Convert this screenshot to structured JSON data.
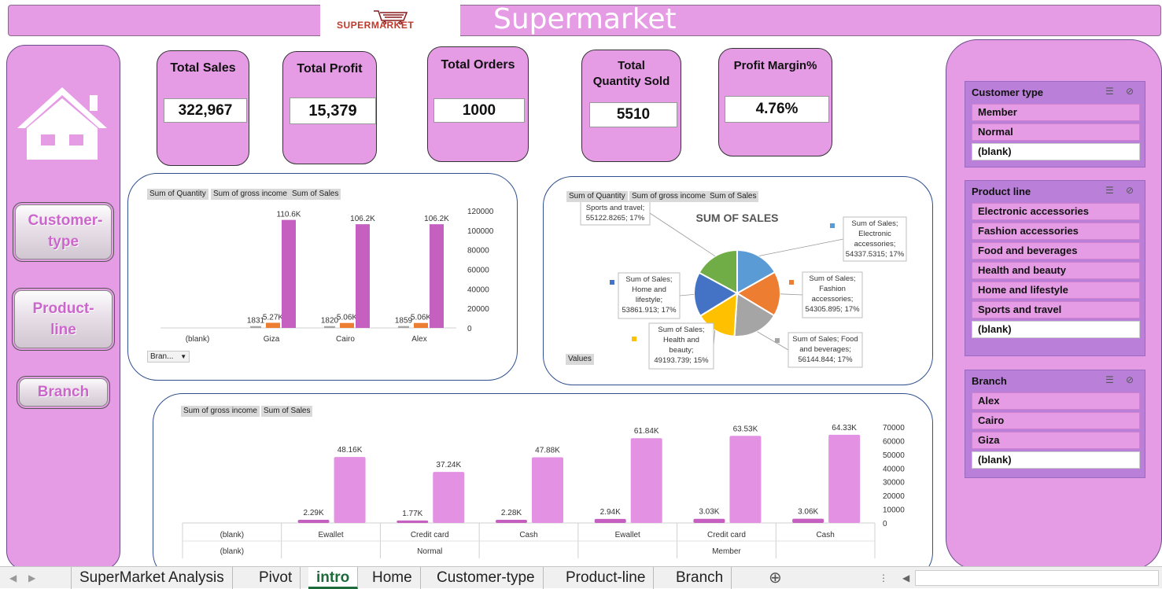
{
  "header": {
    "logo": "SUPERMARKET",
    "title": "Supermarket"
  },
  "nav": {
    "customer_type": "Customer-type",
    "product_line": "Product-line",
    "branch": "Branch"
  },
  "kpis": {
    "total_sales_label": "Total Sales",
    "total_sales": "322,967",
    "total_profit_label": "Total Profit",
    "total_profit": "15,379",
    "total_orders_label": "Total Orders",
    "total_orders": "1000",
    "total_qty_label_1": "Total",
    "total_qty_label_2": "Quantity Sold",
    "total_qty": "5510",
    "profit_margin_label": "Profit Margin%",
    "profit_margin": "4.76%"
  },
  "colors": {
    "sales": "#c55fc0",
    "profit": "#ed7d31",
    "quantity": "#a5a5a5",
    "panel": "#e59ce5",
    "bar2": "#e391e3"
  },
  "chart_data": [
    {
      "type": "bar",
      "title": "",
      "field_buttons": [
        "Sum of Quantity",
        "Sum of gross income",
        "Sum of Sales"
      ],
      "filter_button": "Bran...",
      "categories": [
        "(blank)",
        "Giza",
        "Cairo",
        "Alex"
      ],
      "series": [
        {
          "name": "Sum of Quantity",
          "values": [
            0,
            1831,
            1820,
            1859
          ],
          "labels": [
            "",
            "1831",
            "1820",
            "1859"
          ]
        },
        {
          "name": "Sum of gross income",
          "values": [
            0,
            5270,
            5060,
            5060
          ],
          "labels": [
            "",
            "5.27K",
            "5.06K",
            "5.06K"
          ]
        },
        {
          "name": "Sum of Sales",
          "values": [
            0,
            110600,
            106200,
            106200
          ],
          "labels": [
            "",
            "110.6K",
            "106.2K",
            "106.2K"
          ]
        }
      ],
      "ylim": [
        0,
        120000
      ],
      "yticks": [
        "120000",
        "100000",
        "80000",
        "60000",
        "40000",
        "20000",
        "0"
      ]
    },
    {
      "type": "pie",
      "title": "SUM OF SALES",
      "field_buttons": [
        "Sum of Quantity",
        "Sum of gross income",
        "Sum of Sales"
      ],
      "values_button": "Values",
      "slices": [
        {
          "name": "Electronic accessories",
          "value": 54337.5315,
          "pct": 17,
          "color": "#5b9bd5",
          "label_lines": [
            "Sum of Sales;",
            "Electronic",
            "accessories;",
            "54337.5315; 17%"
          ]
        },
        {
          "name": "Fashion accessories",
          "value": 54305.895,
          "pct": 17,
          "color": "#ed7d31",
          "label_lines": [
            "Sum of Sales;",
            "Fashion",
            "accessories;",
            "54305.895; 17%"
          ]
        },
        {
          "name": "Food and beverages",
          "value": 56144.844,
          "pct": 17,
          "color": "#a5a5a5",
          "label_lines": [
            "Sum of Sales; Food",
            "and beverages;",
            "56144.844; 17%"
          ]
        },
        {
          "name": "Health and beauty",
          "value": 49193.739,
          "pct": 15,
          "color": "#ffc000",
          "label_lines": [
            "Sum of Sales;",
            "Health and",
            "beauty;",
            "49193.739; 15%"
          ]
        },
        {
          "name": "Home and lifestyle",
          "value": 53861.913,
          "pct": 17,
          "color": "#4472c4",
          "label_lines": [
            "Sum of Sales;",
            "Home and",
            "lifestyle;",
            "53861.913; 17%"
          ]
        },
        {
          "name": "Sports and travel",
          "value": 55122.8265,
          "pct": 17,
          "color": "#70ad47",
          "label_lines": [
            "Sports and travel;",
            "55122.8265; 17%"
          ]
        }
      ]
    },
    {
      "type": "bar",
      "title": "",
      "field_buttons": [
        "Sum of gross income",
        "Sum of Sales"
      ],
      "categories": [
        "(blank)",
        "Ewallet",
        "Credit card",
        "Cash",
        "Ewallet",
        "Credit card",
        "Cash"
      ],
      "groups": [
        "(blank)",
        "Normal",
        "Member"
      ],
      "series": [
        {
          "name": "Sum of gross income",
          "values": [
            0,
            2290,
            1770,
            2280,
            2940,
            3030,
            3060
          ],
          "labels": [
            "",
            "2.29K",
            "1.77K",
            "2.28K",
            "2.94K",
            "3.03K",
            "3.06K"
          ]
        },
        {
          "name": "Sum of Sales",
          "values": [
            0,
            48160,
            37240,
            47880,
            61840,
            63530,
            64330
          ],
          "labels": [
            "",
            "48.16K",
            "37.24K",
            "47.88K",
            "61.84K",
            "63.53K",
            "64.33K"
          ]
        }
      ],
      "ylim": [
        0,
        70000
      ],
      "yticks": [
        "70000",
        "60000",
        "50000",
        "40000",
        "30000",
        "20000",
        "10000",
        "0"
      ]
    }
  ],
  "slicers": [
    {
      "title": "Customer type",
      "items": [
        "Member",
        "Normal",
        "(blank)"
      ]
    },
    {
      "title": "Product line",
      "items": [
        "Electronic accessories",
        "Fashion accessories",
        "Food and beverages",
        "Health and beauty",
        "Home and lifestyle",
        "Sports and travel",
        "(blank)"
      ]
    },
    {
      "title": "Branch",
      "items": [
        "Alex",
        "Cairo",
        "Giza",
        "(blank)"
      ]
    }
  ],
  "tabs": [
    "SuperMarket Analysis",
    "Pivot",
    "intro",
    "Home",
    "Customer-type",
    "Product-line",
    "Branch"
  ],
  "active_tab": "intro"
}
